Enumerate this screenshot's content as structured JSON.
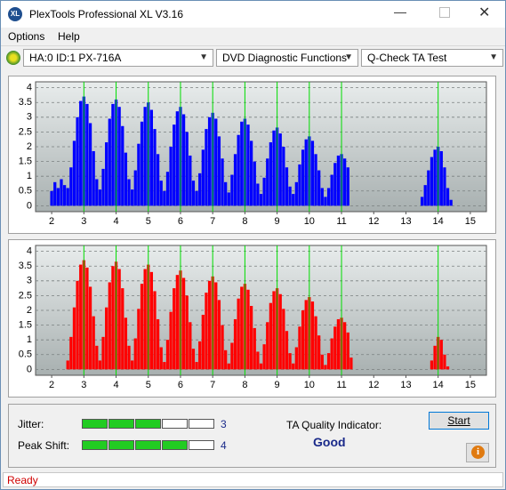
{
  "window": {
    "title": "PlexTools Professional XL V3.16",
    "menu": [
      "Options",
      "Help"
    ],
    "toolbar": [
      "HA:0 ID:1  PX-716A",
      "DVD Diagnostic Functions",
      "Q-Check TA Test"
    ]
  },
  "chart_data": [
    {
      "type": "bar",
      "color": "#0000ff",
      "xlim": [
        1.5,
        15.5
      ],
      "ylim": [
        -0.2,
        4.2
      ],
      "xticks": [
        2,
        3,
        4,
        5,
        6,
        7,
        8,
        9,
        10,
        11,
        12,
        13,
        14,
        15
      ],
      "yticks": [
        0,
        0.5,
        1,
        1.5,
        2,
        2.5,
        3,
        3.5,
        4
      ],
      "grid": true,
      "marker_lines": [
        3,
        4,
        5,
        6,
        7,
        8,
        9,
        10,
        11,
        14
      ],
      "marker_color": "#00dd00",
      "x": [
        2,
        2.1,
        2.2,
        2.3,
        2.4,
        2.5,
        2.6,
        2.7,
        2.8,
        2.9,
        3,
        3.1,
        3.2,
        3.3,
        3.4,
        3.5,
        3.6,
        3.7,
        3.8,
        3.9,
        4,
        4.1,
        4.2,
        4.3,
        4.4,
        4.5,
        4.6,
        4.7,
        4.8,
        4.9,
        5,
        5.1,
        5.2,
        5.3,
        5.4,
        5.5,
        5.6,
        5.7,
        5.8,
        5.9,
        6,
        6.1,
        6.2,
        6.3,
        6.4,
        6.5,
        6.6,
        6.7,
        6.8,
        6.9,
        7,
        7.1,
        7.2,
        7.3,
        7.4,
        7.5,
        7.6,
        7.7,
        7.8,
        7.9,
        8,
        8.1,
        8.2,
        8.3,
        8.4,
        8.5,
        8.6,
        8.7,
        8.8,
        8.9,
        9,
        9.1,
        9.2,
        9.3,
        9.4,
        9.5,
        9.6,
        9.7,
        9.8,
        9.9,
        10,
        10.1,
        10.2,
        10.3,
        10.4,
        10.5,
        10.6,
        10.7,
        10.8,
        10.9,
        11,
        11.1,
        11.2,
        11.3,
        11.4,
        11.5,
        11.6,
        11.7,
        11.8,
        11.9,
        12,
        12.1,
        12.2,
        12.3,
        12.4,
        12.5,
        12.6,
        12.7,
        12.8,
        12.9,
        13,
        13.1,
        13.2,
        13.3,
        13.4,
        13.5,
        13.6,
        13.7,
        13.8,
        13.9,
        14,
        14.1,
        14.2,
        14.3,
        14.4,
        14.5,
        14.6
      ],
      "values": [
        0.5,
        0.8,
        0.6,
        0.9,
        0.7,
        0.6,
        1.3,
        2.2,
        3.0,
        3.55,
        3.7,
        3.45,
        2.8,
        1.85,
        0.9,
        0.55,
        1.25,
        2.15,
        2.95,
        3.45,
        3.6,
        3.35,
        2.7,
        1.8,
        0.9,
        0.55,
        1.2,
        2.1,
        2.85,
        3.35,
        3.5,
        3.25,
        2.6,
        1.75,
        0.85,
        0.5,
        1.15,
        2.0,
        2.75,
        3.2,
        3.35,
        3.1,
        2.5,
        1.7,
        0.85,
        0.5,
        1.1,
        1.9,
        2.6,
        3.0,
        3.15,
        2.95,
        2.35,
        1.6,
        0.8,
        0.45,
        1.05,
        1.75,
        2.4,
        2.85,
        2.95,
        2.75,
        2.2,
        1.5,
        0.75,
        0.4,
        0.95,
        1.6,
        2.15,
        2.55,
        2.65,
        2.45,
        2.0,
        1.3,
        0.65,
        0.4,
        0.8,
        1.4,
        1.9,
        2.25,
        2.35,
        2.2,
        1.75,
        1.2,
        0.6,
        0.3,
        0.6,
        1.05,
        1.45,
        1.7,
        1.75,
        1.6,
        1.3,
        0,
        0,
        0,
        0,
        0,
        0,
        0,
        0,
        0,
        0,
        0,
        0,
        0,
        0,
        0,
        0,
        0,
        0,
        0,
        0,
        0,
        0,
        0.3,
        0.7,
        1.2,
        1.65,
        1.9,
        2.0,
        1.85,
        1.3,
        0.6,
        0.2,
        0,
        0
      ]
    },
    {
      "type": "bar",
      "color": "#ff0000",
      "xlim": [
        1.5,
        15.5
      ],
      "ylim": [
        -0.2,
        4.2
      ],
      "xticks": [
        2,
        3,
        4,
        5,
        6,
        7,
        8,
        9,
        10,
        11,
        12,
        13,
        14,
        15
      ],
      "yticks": [
        0,
        0.5,
        1,
        1.5,
        2,
        2.5,
        3,
        3.5,
        4
      ],
      "grid": true,
      "marker_lines": [
        3,
        4,
        5,
        6,
        7,
        8,
        9,
        10,
        11,
        14
      ],
      "marker_color": "#00dd00",
      "x": [
        2,
        2.1,
        2.2,
        2.3,
        2.4,
        2.5,
        2.6,
        2.7,
        2.8,
        2.9,
        3,
        3.1,
        3.2,
        3.3,
        3.4,
        3.5,
        3.6,
        3.7,
        3.8,
        3.9,
        4,
        4.1,
        4.2,
        4.3,
        4.4,
        4.5,
        4.6,
        4.7,
        4.8,
        4.9,
        5,
        5.1,
        5.2,
        5.3,
        5.4,
        5.5,
        5.6,
        5.7,
        5.8,
        5.9,
        6,
        6.1,
        6.2,
        6.3,
        6.4,
        6.5,
        6.6,
        6.7,
        6.8,
        6.9,
        7,
        7.1,
        7.2,
        7.3,
        7.4,
        7.5,
        7.6,
        7.7,
        7.8,
        7.9,
        8,
        8.1,
        8.2,
        8.3,
        8.4,
        8.5,
        8.6,
        8.7,
        8.8,
        8.9,
        9,
        9.1,
        9.2,
        9.3,
        9.4,
        9.5,
        9.6,
        9.7,
        9.8,
        9.9,
        10,
        10.1,
        10.2,
        10.3,
        10.4,
        10.5,
        10.6,
        10.7,
        10.8,
        10.9,
        11,
        11.1,
        11.2,
        11.3,
        11.4,
        11.5,
        11.6,
        11.7,
        11.8,
        11.9,
        12,
        12.1,
        12.2,
        12.3,
        12.4,
        12.5,
        12.6,
        12.7,
        12.8,
        12.9,
        13,
        13.1,
        13.2,
        13.3,
        13.4,
        13.5,
        13.6,
        13.7,
        13.8,
        13.9,
        14,
        14.1,
        14.2,
        14.3,
        14.4,
        14.5,
        14.6
      ],
      "values": [
        0,
        0,
        0,
        0,
        0,
        0.3,
        1.1,
        2.1,
        3.0,
        3.55,
        3.7,
        3.45,
        2.8,
        1.8,
        0.8,
        0.3,
        1.1,
        2.1,
        2.95,
        3.5,
        3.65,
        3.4,
        2.75,
        1.75,
        0.8,
        0.3,
        1.05,
        2.05,
        2.9,
        3.4,
        3.55,
        3.3,
        2.65,
        1.7,
        0.75,
        0.25,
        1.0,
        1.95,
        2.75,
        3.2,
        3.35,
        3.1,
        2.5,
        1.6,
        0.7,
        0.25,
        0.95,
        1.85,
        2.6,
        3.0,
        3.15,
        2.95,
        2.35,
        1.5,
        0.65,
        0.2,
        0.9,
        1.7,
        2.4,
        2.8,
        2.9,
        2.7,
        2.15,
        1.4,
        0.6,
        0.2,
        0.85,
        1.6,
        2.25,
        2.65,
        2.75,
        2.55,
        2.05,
        1.3,
        0.55,
        0.2,
        0.75,
        1.45,
        2.0,
        2.35,
        2.45,
        2.3,
        1.8,
        1.15,
        0.5,
        0.15,
        0.55,
        1.05,
        1.45,
        1.7,
        1.75,
        1.6,
        1.25,
        0.4,
        0,
        0,
        0,
        0,
        0,
        0,
        0,
        0,
        0,
        0,
        0,
        0,
        0,
        0,
        0,
        0,
        0,
        0,
        0,
        0,
        0,
        0,
        0,
        0,
        0.3,
        0.8,
        1.1,
        1.0,
        0.5,
        0.1,
        0,
        0,
        0
      ]
    }
  ],
  "results": {
    "jitter": {
      "label": "Jitter:",
      "value": 3
    },
    "peak_shift": {
      "label": "Peak Shift:",
      "value": 4
    },
    "ta_quality": {
      "label": "TA Quality Indicator:",
      "value": "Good"
    },
    "start_button": "Start"
  },
  "status": "Ready"
}
